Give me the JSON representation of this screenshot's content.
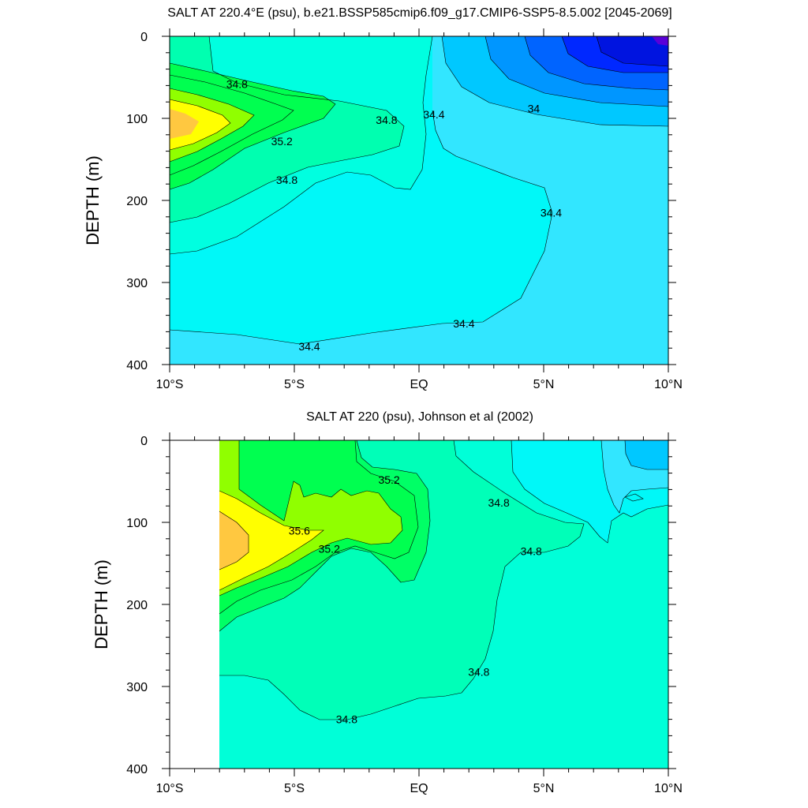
{
  "chart_data": [
    {
      "type": "heatmap",
      "subtype": "filled-contour",
      "title": "SALT AT 220.4°E (psu), b.e21.BSSP585cmip6.f09_g17.CMIP6-SSP5-8.5.002 [2045-2069]",
      "title_sup": "o",
      "ylabel": "DEPTH (m)",
      "xlabel": "",
      "x_tick_labels": [
        "10°S",
        "5°S",
        "EQ",
        "5°N",
        "10°N"
      ],
      "x_ticks": [
        -10,
        -5,
        0,
        5,
        10
      ],
      "y_ticks": [
        0,
        100,
        200,
        300,
        400
      ],
      "xlim": [
        -10,
        10
      ],
      "ylim": [
        0,
        400
      ],
      "y_inverted": true,
      "contour_interval": 0.2,
      "contour_labels": [
        {
          "text": "34.8",
          "x": -7.3,
          "y": 58
        },
        {
          "text": "34.8",
          "x": -1.3,
          "y": 102
        },
        {
          "text": "34.4",
          "x": 0.6,
          "y": 95
        },
        {
          "text": "34",
          "x": 4.6,
          "y": 88
        },
        {
          "text": "35.2",
          "x": -5.5,
          "y": 128
        },
        {
          "text": "34.8",
          "x": -5.3,
          "y": 175
        },
        {
          "text": "34.4",
          "x": 5.3,
          "y": 215
        },
        {
          "text": "34.4",
          "x": 1.8,
          "y": 350
        },
        {
          "text": "34.4",
          "x": -4.4,
          "y": 378
        }
      ],
      "colors": {
        "s_3_4": "#5a00d8",
        "s_3_6": "#0028ff",
        "s_3_8": "#0064ff",
        "s_4_0": "#0096ff",
        "s_4_2": "#00c8ff",
        "s_4_4": "#32e6ff",
        "s_4_6": "#00f8f8",
        "s_4_8": "#00ffe0",
        "s_5_0": "#00ffb0",
        "s_5_2": "#00ff50",
        "s_5_4": "#90ff00",
        "s_5_6": "#ffff00",
        "s_5_8": "#ffc840"
      }
    },
    {
      "type": "heatmap",
      "subtype": "filled-contour",
      "title": "SALT AT 220 (psu), Johnson et al (2002)",
      "ylabel": "DEPTH (m)",
      "xlabel": "",
      "x_tick_labels": [
        "10°S",
        "5°S",
        "EQ",
        "5°N",
        "10°N"
      ],
      "x_ticks": [
        -10,
        -5,
        0,
        5,
        10
      ],
      "y_ticks": [
        0,
        100,
        200,
        300,
        400
      ],
      "xlim": [
        -10,
        10
      ],
      "ylim": [
        0,
        400
      ],
      "y_inverted": true,
      "contour_interval": 0.2,
      "contour_labels": [
        {
          "text": "35.2",
          "x": -1.2,
          "y": 48
        },
        {
          "text": "34.8",
          "x": 3.2,
          "y": 76
        },
        {
          "text": "35.6",
          "x": -4.8,
          "y": 110
        },
        {
          "text": "35.2",
          "x": -3.6,
          "y": 132
        },
        {
          "text": "34.8",
          "x": 4.5,
          "y": 135
        },
        {
          "text": "34.8",
          "x": 2.4,
          "y": 282
        },
        {
          "text": "34.8",
          "x": -2.9,
          "y": 340
        }
      ],
      "colors": {
        "s_4_4": "#32e6ff",
        "s_4_6": "#00f8f8",
        "s_4_8": "#00ffe0",
        "s_5_0": "#00ffb0",
        "s_5_2": "#00ff50",
        "s_5_4": "#90ff00",
        "s_5_6": "#ffff00",
        "s_5_8": "#ffc840",
        "s_4_2": "#00c8ff"
      }
    }
  ]
}
